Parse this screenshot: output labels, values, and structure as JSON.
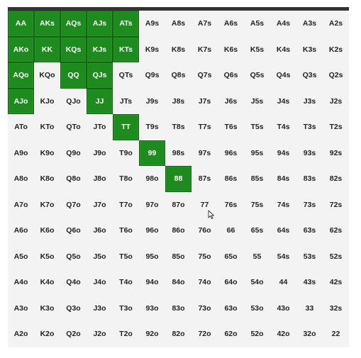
{
  "range_grid": {
    "selected_color": "#1e8b1e",
    "cells": [
      {
        "label": "AA",
        "selected": true
      },
      {
        "label": "AKs",
        "selected": true
      },
      {
        "label": "AQs",
        "selected": true
      },
      {
        "label": "AJs",
        "selected": true
      },
      {
        "label": "ATs",
        "selected": true
      },
      {
        "label": "A9s",
        "selected": false
      },
      {
        "label": "A8s",
        "selected": false
      },
      {
        "label": "A7s",
        "selected": false
      },
      {
        "label": "A6s",
        "selected": false
      },
      {
        "label": "A5s",
        "selected": false
      },
      {
        "label": "A4s",
        "selected": false
      },
      {
        "label": "A3s",
        "selected": false
      },
      {
        "label": "A2s",
        "selected": false
      },
      {
        "label": "AKo",
        "selected": true
      },
      {
        "label": "KK",
        "selected": true
      },
      {
        "label": "KQs",
        "selected": true
      },
      {
        "label": "KJs",
        "selected": true
      },
      {
        "label": "KTs",
        "selected": true
      },
      {
        "label": "K9s",
        "selected": false
      },
      {
        "label": "K8s",
        "selected": false
      },
      {
        "label": "K7s",
        "selected": false
      },
      {
        "label": "K6s",
        "selected": false
      },
      {
        "label": "K5s",
        "selected": false
      },
      {
        "label": "K4s",
        "selected": false
      },
      {
        "label": "K3s",
        "selected": false
      },
      {
        "label": "K2s",
        "selected": false
      },
      {
        "label": "AQo",
        "selected": true
      },
      {
        "label": "KQo",
        "selected": false
      },
      {
        "label": "QQ",
        "selected": true
      },
      {
        "label": "QJs",
        "selected": true
      },
      {
        "label": "QTs",
        "selected": false
      },
      {
        "label": "Q9s",
        "selected": false
      },
      {
        "label": "Q8s",
        "selected": false
      },
      {
        "label": "Q7s",
        "selected": false
      },
      {
        "label": "Q6s",
        "selected": false
      },
      {
        "label": "Q5s",
        "selected": false
      },
      {
        "label": "Q4s",
        "selected": false
      },
      {
        "label": "Q3s",
        "selected": false
      },
      {
        "label": "Q2s",
        "selected": false
      },
      {
        "label": "AJo",
        "selected": true
      },
      {
        "label": "KJo",
        "selected": false
      },
      {
        "label": "QJo",
        "selected": false
      },
      {
        "label": "JJ",
        "selected": true
      },
      {
        "label": "JTs",
        "selected": false
      },
      {
        "label": "J9s",
        "selected": false
      },
      {
        "label": "J8s",
        "selected": false
      },
      {
        "label": "J7s",
        "selected": false
      },
      {
        "label": "J6s",
        "selected": false
      },
      {
        "label": "J5s",
        "selected": false
      },
      {
        "label": "J4s",
        "selected": false
      },
      {
        "label": "J3s",
        "selected": false
      },
      {
        "label": "J2s",
        "selected": false
      },
      {
        "label": "ATo",
        "selected": false
      },
      {
        "label": "KTo",
        "selected": false
      },
      {
        "label": "QTo",
        "selected": false
      },
      {
        "label": "JTo",
        "selected": false
      },
      {
        "label": "TT",
        "selected": true
      },
      {
        "label": "T9s",
        "selected": false
      },
      {
        "label": "T8s",
        "selected": false
      },
      {
        "label": "T7s",
        "selected": false
      },
      {
        "label": "T6s",
        "selected": false
      },
      {
        "label": "T5s",
        "selected": false
      },
      {
        "label": "T4s",
        "selected": false
      },
      {
        "label": "T3s",
        "selected": false
      },
      {
        "label": "T2s",
        "selected": false
      },
      {
        "label": "A9o",
        "selected": false
      },
      {
        "label": "K9o",
        "selected": false
      },
      {
        "label": "Q9o",
        "selected": false
      },
      {
        "label": "J9o",
        "selected": false
      },
      {
        "label": "T9o",
        "selected": false
      },
      {
        "label": "99",
        "selected": true
      },
      {
        "label": "98s",
        "selected": false
      },
      {
        "label": "97s",
        "selected": false
      },
      {
        "label": "96s",
        "selected": false
      },
      {
        "label": "95s",
        "selected": false
      },
      {
        "label": "94s",
        "selected": false
      },
      {
        "label": "93s",
        "selected": false
      },
      {
        "label": "92s",
        "selected": false
      },
      {
        "label": "A8o",
        "selected": false
      },
      {
        "label": "K8o",
        "selected": false
      },
      {
        "label": "Q8o",
        "selected": false
      },
      {
        "label": "J8o",
        "selected": false
      },
      {
        "label": "T8o",
        "selected": false
      },
      {
        "label": "98o",
        "selected": false
      },
      {
        "label": "88",
        "selected": true
      },
      {
        "label": "87s",
        "selected": false
      },
      {
        "label": "86s",
        "selected": false
      },
      {
        "label": "85s",
        "selected": false
      },
      {
        "label": "84s",
        "selected": false
      },
      {
        "label": "83s",
        "selected": false
      },
      {
        "label": "82s",
        "selected": false
      },
      {
        "label": "A7o",
        "selected": false
      },
      {
        "label": "K7o",
        "selected": false
      },
      {
        "label": "Q7o",
        "selected": false
      },
      {
        "label": "J7o",
        "selected": false
      },
      {
        "label": "T7o",
        "selected": false
      },
      {
        "label": "97o",
        "selected": false
      },
      {
        "label": "87o",
        "selected": false
      },
      {
        "label": "77",
        "selected": false
      },
      {
        "label": "76s",
        "selected": false
      },
      {
        "label": "75s",
        "selected": false
      },
      {
        "label": "74s",
        "selected": false
      },
      {
        "label": "73s",
        "selected": false
      },
      {
        "label": "72s",
        "selected": false
      },
      {
        "label": "A6o",
        "selected": false
      },
      {
        "label": "K6o",
        "selected": false
      },
      {
        "label": "Q6o",
        "selected": false
      },
      {
        "label": "J6o",
        "selected": false
      },
      {
        "label": "T6o",
        "selected": false
      },
      {
        "label": "96o",
        "selected": false
      },
      {
        "label": "86o",
        "selected": false
      },
      {
        "label": "76o",
        "selected": false
      },
      {
        "label": "66",
        "selected": false
      },
      {
        "label": "65s",
        "selected": false
      },
      {
        "label": "64s",
        "selected": false
      },
      {
        "label": "63s",
        "selected": false
      },
      {
        "label": "62s",
        "selected": false
      },
      {
        "label": "A5o",
        "selected": false
      },
      {
        "label": "K5o",
        "selected": false
      },
      {
        "label": "Q5o",
        "selected": false
      },
      {
        "label": "J5o",
        "selected": false
      },
      {
        "label": "T5o",
        "selected": false
      },
      {
        "label": "95o",
        "selected": false
      },
      {
        "label": "85o",
        "selected": false
      },
      {
        "label": "75o",
        "selected": false
      },
      {
        "label": "65o",
        "selected": false
      },
      {
        "label": "55",
        "selected": false
      },
      {
        "label": "54s",
        "selected": false
      },
      {
        "label": "53s",
        "selected": false
      },
      {
        "label": "52s",
        "selected": false
      },
      {
        "label": "A4o",
        "selected": false
      },
      {
        "label": "K4o",
        "selected": false
      },
      {
        "label": "Q4o",
        "selected": false
      },
      {
        "label": "J4o",
        "selected": false
      },
      {
        "label": "T4o",
        "selected": false
      },
      {
        "label": "94o",
        "selected": false
      },
      {
        "label": "84o",
        "selected": false
      },
      {
        "label": "74o",
        "selected": false
      },
      {
        "label": "64o",
        "selected": false
      },
      {
        "label": "54o",
        "selected": false
      },
      {
        "label": "44",
        "selected": false
      },
      {
        "label": "43s",
        "selected": false
      },
      {
        "label": "42s",
        "selected": false
      },
      {
        "label": "A3o",
        "selected": false
      },
      {
        "label": "K3o",
        "selected": false
      },
      {
        "label": "Q3o",
        "selected": false
      },
      {
        "label": "J3o",
        "selected": false
      },
      {
        "label": "T3o",
        "selected": false
      },
      {
        "label": "93o",
        "selected": false
      },
      {
        "label": "83o",
        "selected": false
      },
      {
        "label": "73o",
        "selected": false
      },
      {
        "label": "63o",
        "selected": false
      },
      {
        "label": "53o",
        "selected": false
      },
      {
        "label": "43o",
        "selected": false
      },
      {
        "label": "33",
        "selected": false
      },
      {
        "label": "32s",
        "selected": false
      },
      {
        "label": "A2o",
        "selected": false
      },
      {
        "label": "K2o",
        "selected": false
      },
      {
        "label": "Q2o",
        "selected": false
      },
      {
        "label": "J2o",
        "selected": false
      },
      {
        "label": "T2o",
        "selected": false
      },
      {
        "label": "92o",
        "selected": false
      },
      {
        "label": "82o",
        "selected": false
      },
      {
        "label": "72o",
        "selected": false
      },
      {
        "label": "62o",
        "selected": false
      },
      {
        "label": "52o",
        "selected": false
      },
      {
        "label": "42o",
        "selected": false
      },
      {
        "label": "32o",
        "selected": false
      },
      {
        "label": "22",
        "selected": false
      }
    ]
  },
  "cursor": {
    "icon": "mouse-pointer-icon"
  }
}
